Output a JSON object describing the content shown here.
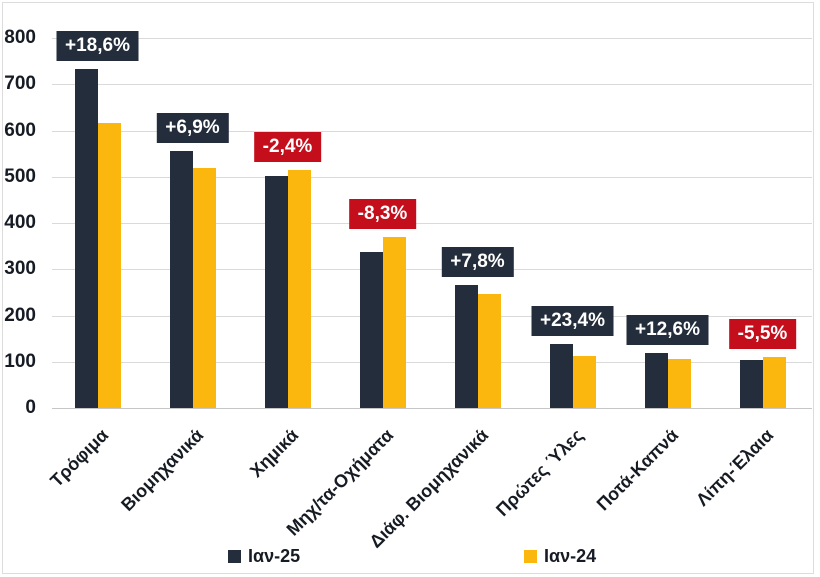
{
  "chart_data": {
    "type": "bar",
    "title": "",
    "xlabel": "",
    "ylabel": "",
    "categories": [
      "Τρόφιμα",
      "Βιομηχανικά",
      "Χημικά",
      "Μηχ/τα-Οχήματα",
      "Διάφ. Βιομηχανικά",
      "Πρώτες Ύλες",
      "Ποτά-Καπνά",
      "Λίπη-Έλαια"
    ],
    "series": [
      {
        "name": "Ιαν-25",
        "color": "#242d3b",
        "values": [
          732,
          556,
          502,
          338,
          265,
          139,
          118,
          104
        ]
      },
      {
        "name": "Ιαν-24",
        "color": "#fbb70e",
        "values": [
          617,
          520,
          514,
          369,
          246,
          113,
          105,
          110
        ]
      }
    ],
    "pct_labels": [
      {
        "text": "+18,6%",
        "negative": false
      },
      {
        "text": "+6,9%",
        "negative": false
      },
      {
        "text": "-2,4%",
        "negative": true
      },
      {
        "text": "-8,3%",
        "negative": true
      },
      {
        "text": "+7,8%",
        "negative": false
      },
      {
        "text": "+23,4%",
        "negative": false
      },
      {
        "text": "+12,6%",
        "negative": false
      },
      {
        "text": "-5,5%",
        "negative": true
      }
    ],
    "ylim": [
      0,
      800
    ],
    "ytick_step": 100,
    "yticks": [
      "0",
      "100",
      "200",
      "300",
      "400",
      "500",
      "600",
      "700",
      "800"
    ],
    "grid": true,
    "legend_position": "bottom"
  },
  "colors": {
    "series_ian25": "#242d3b",
    "series_ian24": "#fbb70e",
    "positive_label_bg": "#242d3b",
    "negative_label_bg": "#c50e1b",
    "label_text": "#ffffff",
    "gridline": "#dadada",
    "axis_text": "#161b24",
    "background": "#ffffff"
  }
}
